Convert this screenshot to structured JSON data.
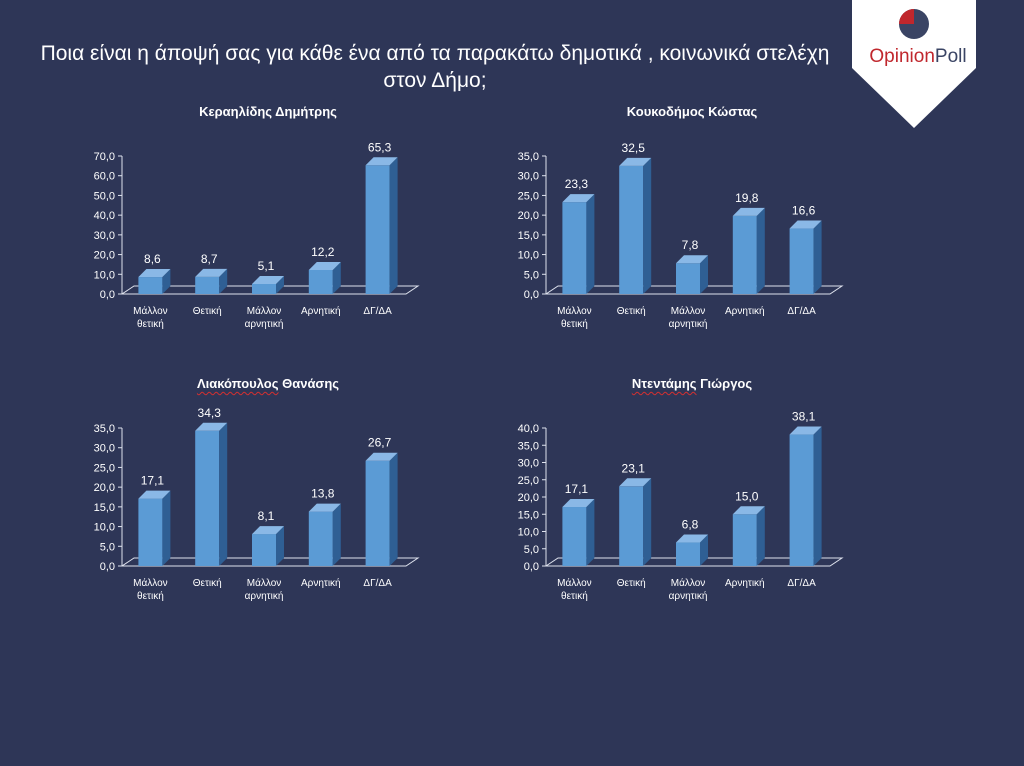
{
  "title": {
    "line1": "Ποια είναι η άποψή σας για κάθε ένα από τα παρακάτω δημοτικά , κοινωνικά στελέχη",
    "line2": "στον Δήμο;"
  },
  "logo": {
    "word1": "Opinion",
    "word2": "Poll",
    "red": "#c0272d",
    "navy": "#3a4464"
  },
  "colors": {
    "background": "#2e3657",
    "bar_front": "#5b9bd5",
    "bar_side": "#2f5f94",
    "bar_top": "#8ab8e6"
  },
  "chart_data": [
    {
      "type": "bar",
      "title": "Κεραηλίδης Δημήτρης",
      "categories": [
        "Μάλλον θετική",
        "Θετική",
        "Μάλλον αρνητική",
        "Αρνητική",
        "ΔΓ/ΔΑ"
      ],
      "category_lines": [
        [
          "Μάλλον",
          "θετική"
        ],
        [
          "Θετική"
        ],
        [
          "Μάλλον",
          "αρνητική"
        ],
        [
          "Αρνητική"
        ],
        [
          "ΔΓ/ΔΑ"
        ]
      ],
      "values": [
        8.6,
        8.7,
        5.1,
        12.2,
        65.3
      ],
      "value_labels": [
        "8,6",
        "8,7",
        "5,1",
        "12,2",
        "65,3"
      ],
      "ylim": [
        0,
        70
      ],
      "yticks": [
        "0,0",
        "10,0",
        "20,0",
        "30,0",
        "40,0",
        "50,0",
        "60,0",
        "70,0"
      ]
    },
    {
      "type": "bar",
      "title": "Κουκοδήμος Κώστας",
      "categories": [
        "Μάλλον θετική",
        "Θετική",
        "Μάλλον αρνητική",
        "Αρνητική",
        "ΔΓ/ΔΑ"
      ],
      "category_lines": [
        [
          "Μάλλον",
          "θετική"
        ],
        [
          "Θετική"
        ],
        [
          "Μάλλον",
          "αρνητική"
        ],
        [
          "Αρνητική"
        ],
        [
          "ΔΓ/ΔΑ"
        ]
      ],
      "values": [
        23.3,
        32.5,
        7.8,
        19.8,
        16.6
      ],
      "value_labels": [
        "23,3",
        "32,5",
        "7,8",
        "19,8",
        "16,6"
      ],
      "ylim": [
        0,
        35
      ],
      "yticks": [
        "0,0",
        "5,0",
        "10,0",
        "15,0",
        "20,0",
        "25,0",
        "30,0",
        "35,0"
      ]
    },
    {
      "type": "bar",
      "title": "Λιακόπουλος Θανάσης",
      "title_word1": "Λιακόπουλος",
      "title_word2": " Θανάσης",
      "categories": [
        "Μάλλον θετική",
        "Θετική",
        "Μάλλον αρνητική",
        "Αρνητική",
        "ΔΓ/ΔΑ"
      ],
      "category_lines": [
        [
          "Μάλλον",
          "θετική"
        ],
        [
          "Θετική"
        ],
        [
          "Μάλλον",
          "αρνητική"
        ],
        [
          "Αρνητική"
        ],
        [
          "ΔΓ/ΔΑ"
        ]
      ],
      "values": [
        17.1,
        34.3,
        8.1,
        13.8,
        26.7
      ],
      "value_labels": [
        "17,1",
        "34,3",
        "8,1",
        "13,8",
        "26,7"
      ],
      "ylim": [
        0,
        35
      ],
      "yticks": [
        "0,0",
        "5,0",
        "10,0",
        "15,0",
        "20,0",
        "25,0",
        "30,0",
        "35,0"
      ]
    },
    {
      "type": "bar",
      "title": "Ντεντάμης Γιώργος",
      "title_word1": "Ντεντάμης",
      "title_word2": " Γιώργος",
      "categories": [
        "Μάλλον θετική",
        "Θετική",
        "Μάλλον αρνητική",
        "Αρνητική",
        "ΔΓ/ΔΑ"
      ],
      "category_lines": [
        [
          "Μάλλον",
          "θετική"
        ],
        [
          "Θετική"
        ],
        [
          "Μάλλον",
          "αρνητική"
        ],
        [
          "Αρνητική"
        ],
        [
          "ΔΓ/ΔΑ"
        ]
      ],
      "values": [
        17.1,
        23.1,
        6.8,
        15.0,
        38.1
      ],
      "value_labels": [
        "17,1",
        "23,1",
        "6,8",
        "15,0",
        "38,1"
      ],
      "ylim": [
        0,
        40
      ],
      "yticks": [
        "0,0",
        "5,0",
        "10,0",
        "15,0",
        "20,0",
        "25,0",
        "30,0",
        "35,0",
        "40,0"
      ]
    }
  ]
}
